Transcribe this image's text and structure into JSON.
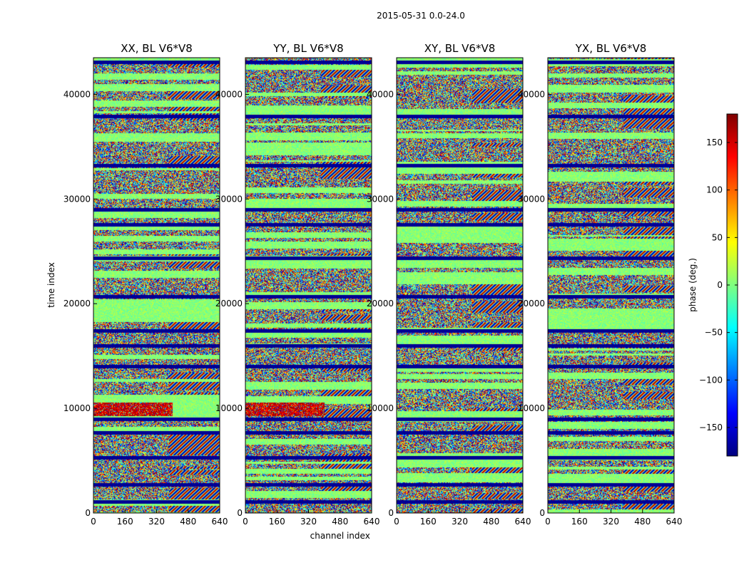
{
  "figure": {
    "suptitle": "2015-05-31 0.0-24.0"
  },
  "chart_data": [
    {
      "type": "heatmap",
      "title": "XX, BL V6*V8",
      "xlabel": "",
      "ylabel": "time index",
      "xlim": [
        0,
        640
      ],
      "ylim": [
        0,
        43500
      ],
      "xticks": [
        0,
        160,
        320,
        480,
        640
      ],
      "yticks": [
        0,
        10000,
        20000,
        30000,
        40000
      ],
      "value_range": [
        -180,
        180
      ],
      "dark_blue_bands": [
        1100,
        2700,
        5300,
        7700,
        9000,
        14000,
        16000,
        17400,
        20700,
        24400,
        27600,
        29000,
        33200,
        37900,
        43100
      ],
      "warm_region": {
        "time": [
          9300,
          10600
        ],
        "channel": [
          0,
          400
        ]
      }
    },
    {
      "type": "heatmap",
      "title": "YY, BL V6*V8",
      "xlabel": "channel index",
      "ylabel": "",
      "xlim": [
        0,
        640
      ],
      "ylim": [
        0,
        43500
      ],
      "xticks": [
        0,
        160,
        320,
        480,
        640
      ],
      "yticks": [
        0,
        10000,
        20000,
        30000,
        40000
      ],
      "value_range": [
        -180,
        180
      ],
      "dark_blue_bands": [
        1100,
        2700,
        5300,
        7700,
        9000,
        14000,
        16000,
        17400,
        20700,
        24400,
        27600,
        29000,
        33200,
        37900,
        43100
      ],
      "warm_region": {
        "time": [
          9300,
          10600
        ],
        "channel": [
          0,
          400
        ]
      }
    },
    {
      "type": "heatmap",
      "title": "XY, BL V6*V8",
      "xlabel": "",
      "ylabel": "",
      "xlim": [
        0,
        640
      ],
      "ylim": [
        0,
        43500
      ],
      "xticks": [
        0,
        160,
        320,
        480,
        640
      ],
      "yticks": [
        0,
        10000,
        20000,
        30000,
        40000
      ],
      "value_range": [
        -180,
        180
      ],
      "dark_blue_bands": [
        1100,
        2700,
        5300,
        7700,
        9000,
        14000,
        16000,
        17400,
        20700,
        24400,
        27600,
        29000,
        33200,
        37900,
        43100
      ]
    },
    {
      "type": "heatmap",
      "title": "YX, BL V6*V8",
      "xlabel": "",
      "ylabel": "",
      "xlim": [
        0,
        640
      ],
      "ylim": [
        0,
        43500
      ],
      "xticks": [
        0,
        160,
        320,
        480,
        640
      ],
      "yticks": [
        0,
        10000,
        20000,
        30000,
        40000
      ],
      "value_range": [
        -180,
        180
      ],
      "dark_blue_bands": [
        1100,
        2700,
        5300,
        7700,
        9000,
        14000,
        16000,
        17400,
        20700,
        24400,
        27600,
        29000,
        33200,
        37900,
        43100
      ]
    }
  ],
  "colorbar": {
    "label": "phase (deg.)",
    "colormap": "jet",
    "range": [
      -180,
      180
    ],
    "ticks": [
      150,
      100,
      50,
      0,
      -50,
      -100,
      -150
    ],
    "tick_labels": [
      "150",
      "100",
      "50",
      "0",
      "−50",
      "−100",
      "−150"
    ]
  }
}
